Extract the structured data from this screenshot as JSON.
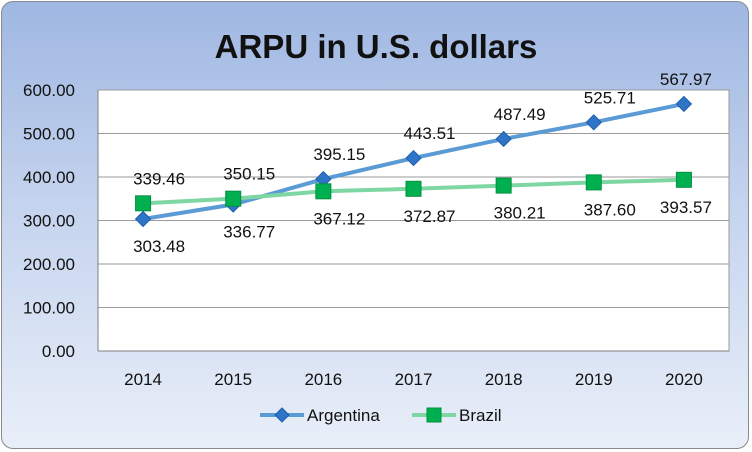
{
  "chart_data": {
    "type": "line",
    "title": "ARPU in U.S. dollars",
    "categories": [
      "2014",
      "2015",
      "2016",
      "2017",
      "2018",
      "2019",
      "2020"
    ],
    "y_ticks": [
      "0.00",
      "100.00",
      "200.00",
      "300.00",
      "400.00",
      "500.00",
      "600.00"
    ],
    "ylim": [
      0,
      600
    ],
    "grid": true,
    "legend_position": "bottom",
    "series": [
      {
        "name": "Argentina",
        "values": [
          303.48,
          336.77,
          395.15,
          443.51,
          487.49,
          525.71,
          567.97
        ],
        "labels": [
          "303.48",
          "336.77",
          "395.15",
          "443.51",
          "487.49",
          "525.71",
          "567.97"
        ],
        "color": "#5b9bd5",
        "marker_color": "#2e75c8",
        "marker": "diamond"
      },
      {
        "name": "Brazil",
        "values": [
          339.46,
          350.15,
          367.12,
          372.87,
          380.21,
          387.6,
          393.57
        ],
        "labels": [
          "339.46",
          "350.15",
          "367.12",
          "372.87",
          "380.21",
          "387.60",
          "393.57"
        ],
        "color": "#7ed6a3",
        "marker_color": "#00b050",
        "marker": "square"
      }
    ]
  }
}
